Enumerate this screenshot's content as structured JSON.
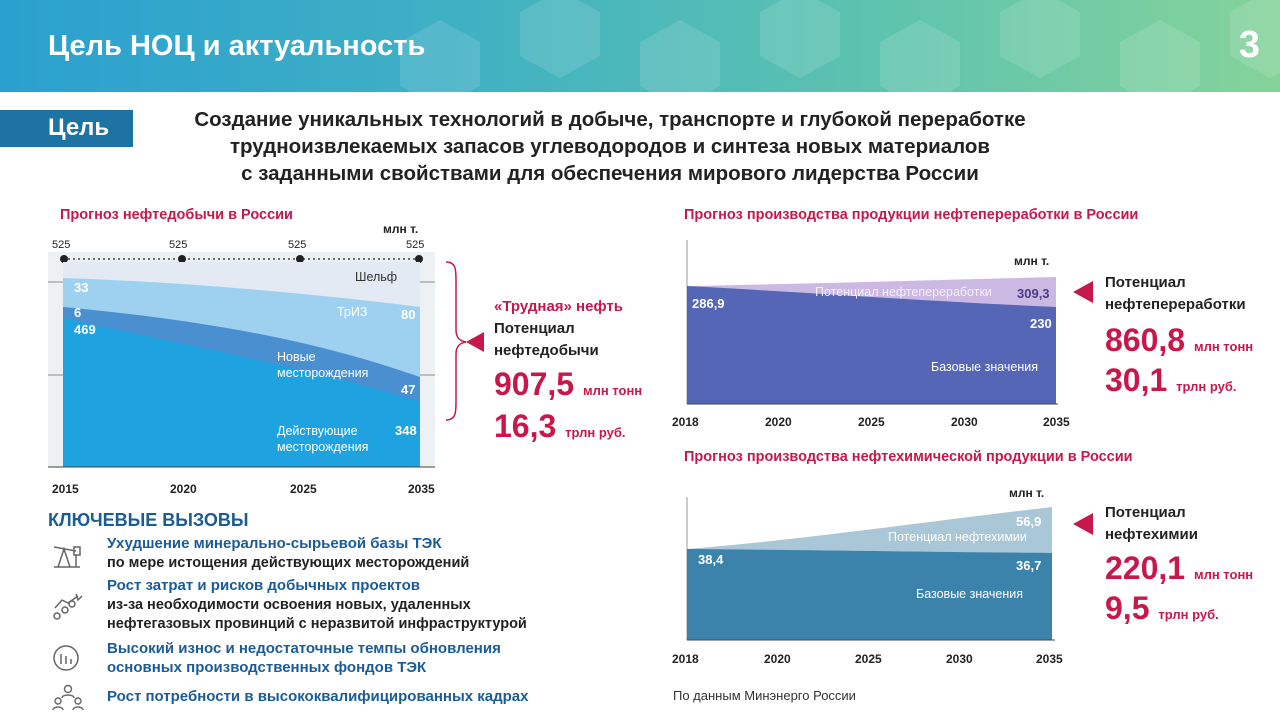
{
  "header": {
    "title": "Цель НОЦ и актуальность",
    "page_number": "3"
  },
  "goal": {
    "tag": "Цель",
    "lines": [
      "Создание уникальных технологий в добыче, транспорте и глубокой переработке",
      "трудноизвлекаемых запасов углеводородов и синтеза новых материалов",
      "с заданными свойствами для обеспечения мирового лидерства России"
    ]
  },
  "oil_chart": {
    "title": "Прогноз нефтедобычи в России",
    "unit": "млн т.",
    "top_values": [
      "525",
      "525",
      "525",
      "525"
    ],
    "labels": {
      "shelf": "Шельф",
      "triz": "ТрИЗ",
      "new": "Новые месторождения",
      "existing": "Действующие месторождения"
    },
    "start_values": [
      "33",
      "6",
      "469"
    ],
    "end_values": [
      "80",
      "47",
      "348"
    ],
    "callout": {
      "title": "«Трудная» нефть",
      "caption": "Потенциал нефтедобычи",
      "value1": "907,5",
      "unit1": "млн тонн",
      "value2": "16,3",
      "unit2": "трлн руб."
    }
  },
  "refining_chart": {
    "title": "Прогноз производства продукции нефтепереработки в России",
    "unit": "млн т.",
    "potential_label": "Потенциал нефтепереработки",
    "base_label": "Базовые значения",
    "start_value": "286,9",
    "end_total": "309,3",
    "end_base": "230",
    "callout": {
      "caption": "Потенциал нефтепереработки",
      "value1": "860,8",
      "unit1": "млн тонн",
      "value2": "30,1",
      "unit2": "трлн руб."
    }
  },
  "petchem_chart": {
    "title": "Прогноз производства нефтехимической продукции в России",
    "unit": "млн т.",
    "potential_label": "Потенциал нефтехимии",
    "base_label": "Базовые значения",
    "start_value": "38,4",
    "end_total": "56,9",
    "end_base": "36,7",
    "callout": {
      "caption": "Потенциал нефтехимии",
      "value1": "220,1",
      "unit1": "млн тонн",
      "value2": "9,5",
      "unit2": "трлн руб."
    }
  },
  "chart_data": [
    {
      "type": "area",
      "title": "Прогноз нефтедобычи в России",
      "ylabel": "млн т.",
      "x": [
        "2015",
        "2020",
        "2025",
        "2035"
      ],
      "series": [
        {
          "name": "Действующие месторождения",
          "values": [
            469,
            445,
            415,
            348
          ]
        },
        {
          "name": "Новые месторождения",
          "values": [
            6,
            20,
            35,
            47
          ]
        },
        {
          "name": "ТрИЗ",
          "values": [
            33,
            45,
            60,
            80
          ]
        },
        {
          "name": "Шельф",
          "values": [
            17,
            15,
            15,
            50
          ]
        }
      ],
      "totals": [
        525,
        525,
        525,
        525
      ]
    },
    {
      "type": "area",
      "title": "Прогноз производства продукции нефтепереработки в России",
      "ylabel": "млн т.",
      "x": [
        "2018",
        "2020",
        "2025",
        "2030",
        "2035"
      ],
      "series": [
        {
          "name": "Базовые значения",
          "values": [
            286.9,
            272,
            258,
            244,
            230
          ]
        },
        {
          "name": "Потенциал нефтепереработки",
          "values": [
            0,
            10,
            35,
            57,
            79.3
          ]
        }
      ]
    },
    {
      "type": "area",
      "title": "Прогноз производства нефтехимической продукции в России",
      "ylabel": "млн т.",
      "x": [
        "2018",
        "2020",
        "2025",
        "2030",
        "2035"
      ],
      "series": [
        {
          "name": "Базовые значения",
          "values": [
            38.4,
            38.2,
            37.6,
            37.2,
            36.7
          ]
        },
        {
          "name": "Потенциал нефтехимии",
          "values": [
            0,
            3,
            9,
            15,
            20.2
          ]
        }
      ]
    }
  ],
  "challenges": {
    "title": "КЛЮЧЕВЫЕ ВЫЗОВЫ",
    "items": [
      {
        "main": "Ухудшение минерально-сырьевой базы ТЭК",
        "sub": [
          "по мере истощения действующих месторождений"
        ]
      },
      {
        "main": "Рост затрат и рисков добычных проектов",
        "sub": [
          "из-за необходимости освоения новых, удаленных",
          "нефтегазовых провинций с неразвитой инфраструктурой"
        ]
      },
      {
        "main": "Высокий износ и недостаточные темпы обновления",
        "sub": [
          "основных производственных фондов ТЭК"
        ]
      },
      {
        "main": "Рост потребности в высококвалифицированных кадрах",
        "sub": []
      }
    ]
  },
  "source": "По данным Минэнерго России"
}
